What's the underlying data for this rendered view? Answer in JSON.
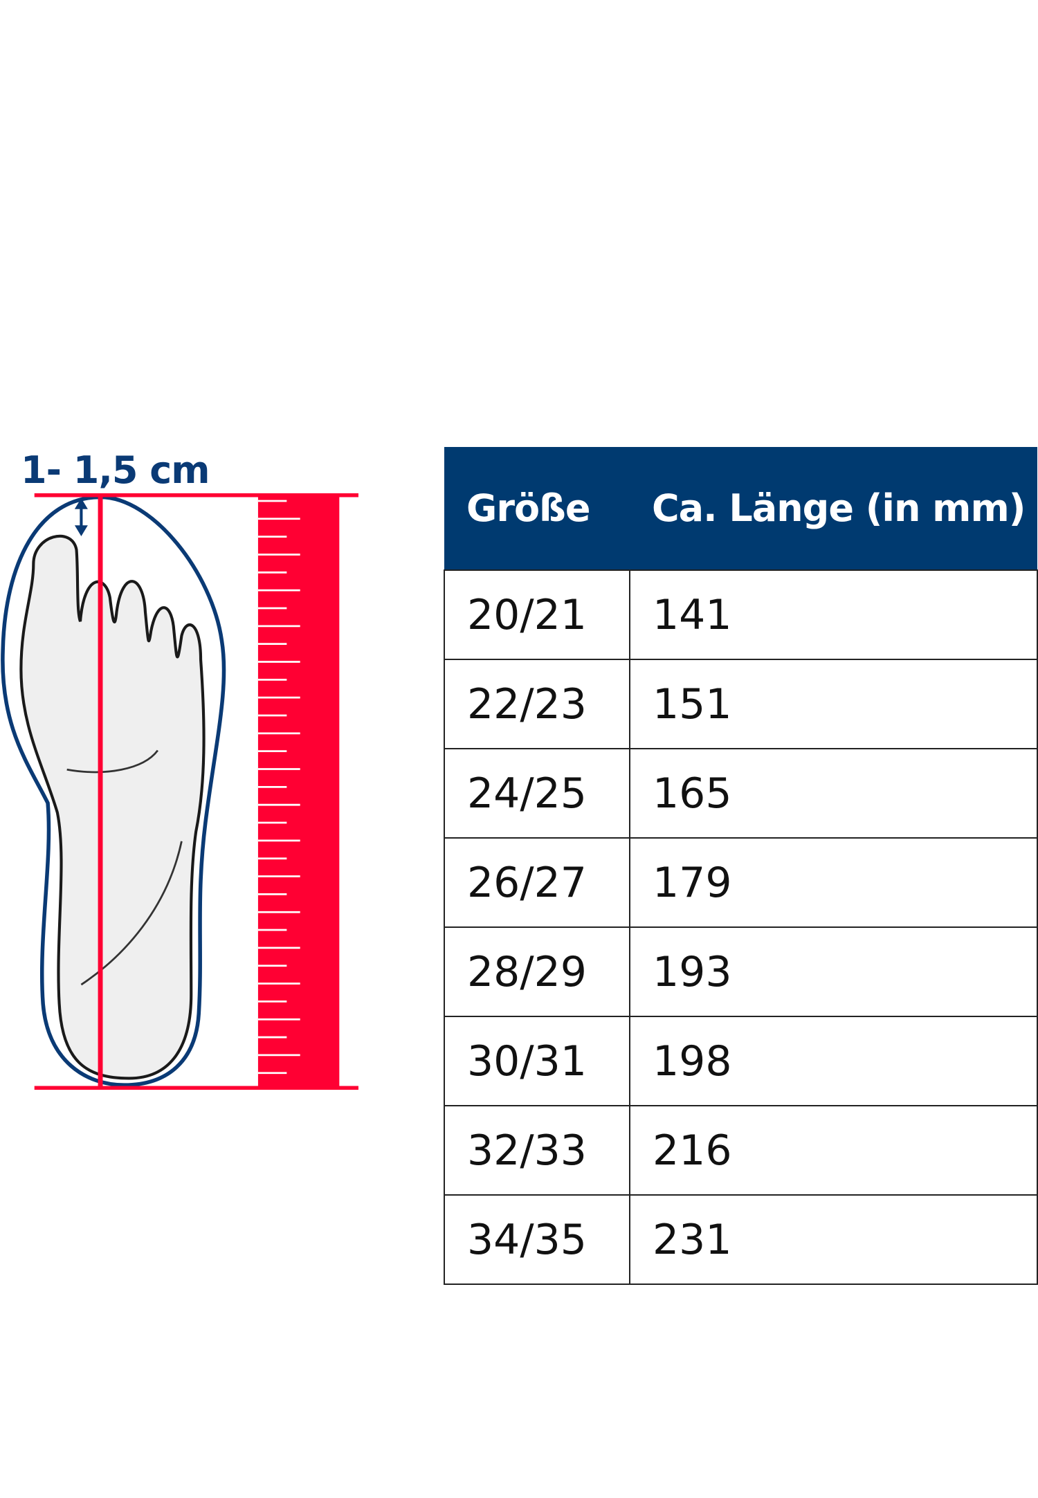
{
  "measure_label": "1- 1,5 cm",
  "colors": {
    "header_bg": "#003a70",
    "ruler": "#ff0033",
    "outline": "#0a3a75"
  },
  "table": {
    "headers": [
      "Größe",
      "Ca. Länge (in mm)"
    ],
    "rows": [
      [
        "20/21",
        "141"
      ],
      [
        "22/23",
        "151"
      ],
      [
        "24/25",
        "165"
      ],
      [
        "26/27",
        "179"
      ],
      [
        "28/29",
        "193"
      ],
      [
        "30/31",
        "198"
      ],
      [
        "32/33",
        "216"
      ],
      [
        "34/35",
        "231"
      ]
    ]
  }
}
